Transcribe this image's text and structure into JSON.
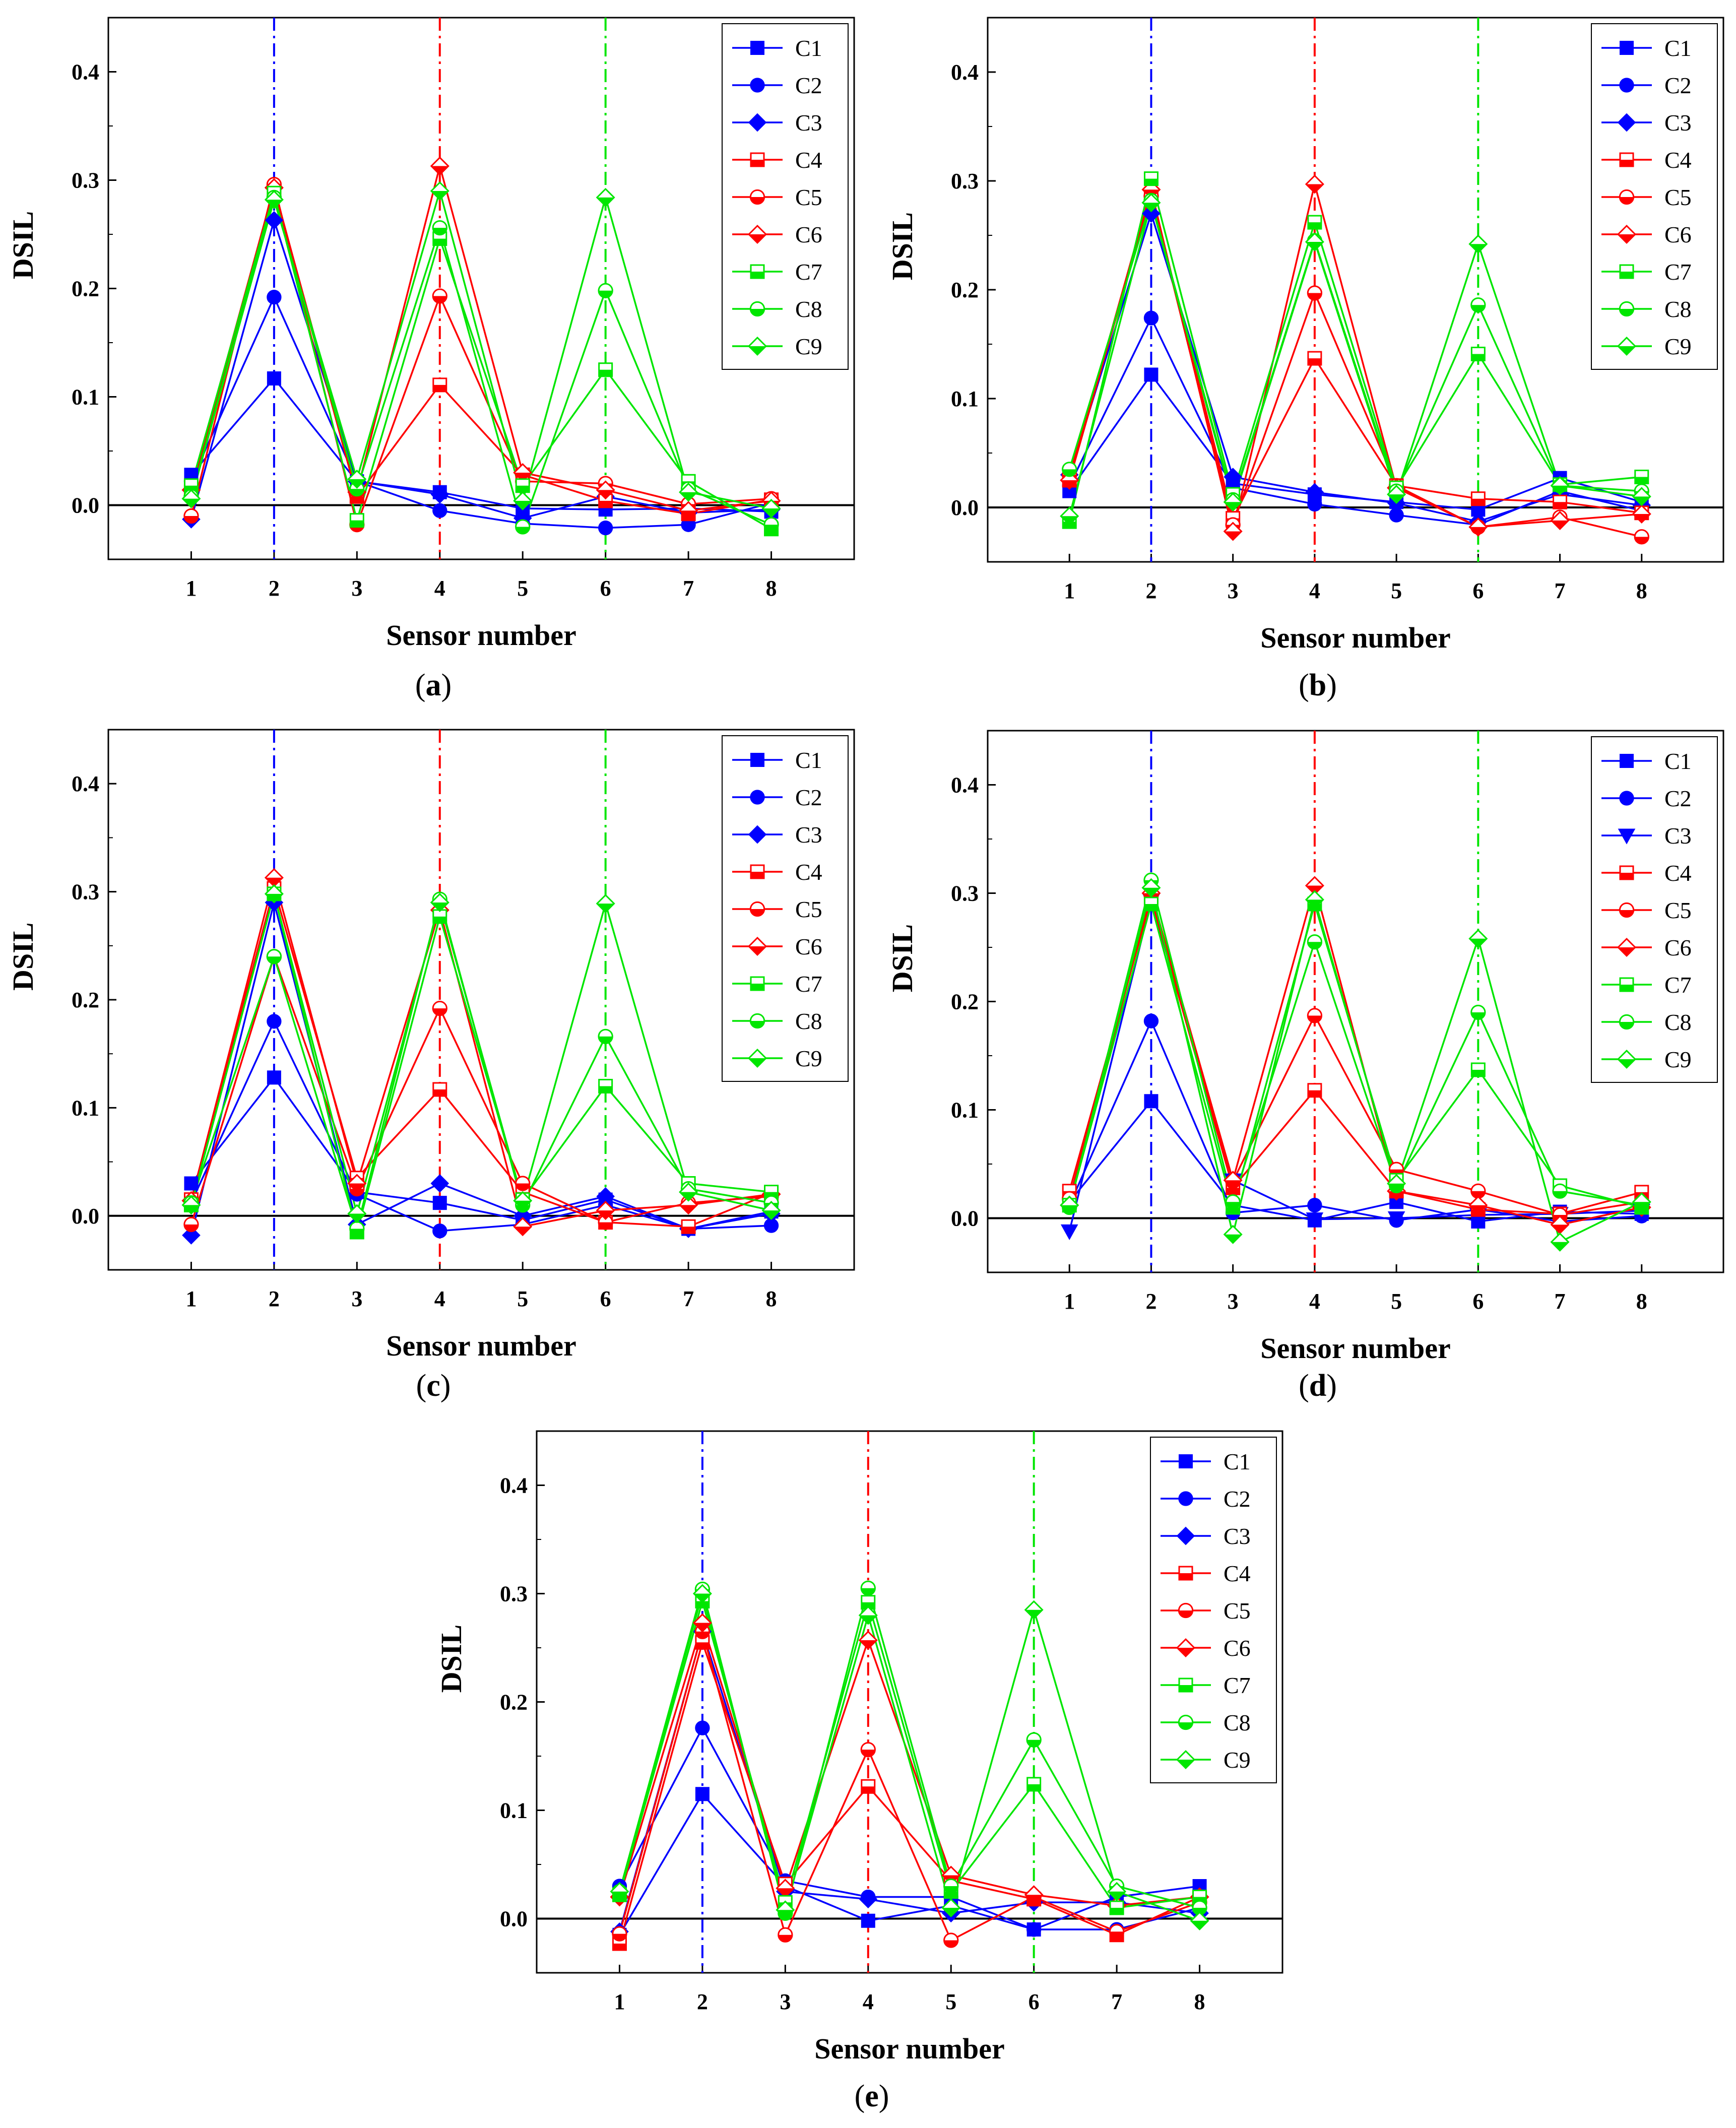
{
  "chart_data": [
    {
      "type": "line",
      "panel_label": "a",
      "xlabel": "Sensor number",
      "ylabel": "DSIL",
      "x": [
        1,
        2,
        3,
        4,
        5,
        6,
        7,
        8
      ],
      "xlim": [
        0,
        9
      ],
      "ylim": [
        -0.05,
        0.45
      ],
      "yticks": [
        0.0,
        0.1,
        0.2,
        0.3,
        0.4
      ],
      "yticklabels": [
        "0.0",
        "0.1",
        "0.2",
        "0.3",
        "0.4"
      ],
      "zero_line": true,
      "legend": "top-right",
      "vlines": [
        {
          "x": 2,
          "color": "#0000ff"
        },
        {
          "x": 4,
          "color": "#ff0000"
        },
        {
          "x": 6,
          "color": "#00e600"
        }
      ],
      "series": [
        {
          "name": "C1",
          "color": "#0000ff",
          "marker": "square",
          "fill": "filled",
          "values": [
            0.028,
            0.117,
            0.022,
            0.012,
            -0.003,
            -0.004,
            -0.003,
            -0.006
          ]
        },
        {
          "name": "C2",
          "color": "#0000ff",
          "marker": "circle",
          "fill": "filled",
          "values": [
            0.022,
            0.192,
            0.022,
            -0.005,
            -0.017,
            -0.021,
            -0.018,
            0.002
          ]
        },
        {
          "name": "C3",
          "color": "#0000ff",
          "marker": "diamond",
          "fill": "filled",
          "values": [
            -0.013,
            0.263,
            0.022,
            0.01,
            -0.012,
            0.008,
            -0.007,
            -0.004
          ]
        },
        {
          "name": "C4",
          "color": "#ff0000",
          "marker": "square",
          "fill": "half",
          "values": [
            0.012,
            0.29,
            0.008,
            0.111,
            0.028,
            0.004,
            -0.008,
            0.005
          ]
        },
        {
          "name": "C5",
          "color": "#ff0000",
          "marker": "circle",
          "fill": "half",
          "values": [
            -0.01,
            0.296,
            -0.018,
            0.193,
            0.022,
            0.02,
            0.001,
            0.006
          ]
        },
        {
          "name": "C6",
          "color": "#ff0000",
          "marker": "diamond",
          "fill": "half",
          "values": [
            0.014,
            0.293,
            0.012,
            0.313,
            0.03,
            0.014,
            -0.005,
            0.004
          ]
        },
        {
          "name": "C7",
          "color": "#00e600",
          "marker": "square",
          "fill": "half",
          "values": [
            0.018,
            0.288,
            -0.014,
            0.246,
            0.018,
            0.125,
            0.022,
            -0.022
          ]
        },
        {
          "name": "C8",
          "color": "#00e600",
          "marker": "circle",
          "fill": "half",
          "values": [
            0.008,
            0.284,
            0.015,
            0.256,
            -0.02,
            0.198,
            0.015,
            -0.018
          ]
        },
        {
          "name": "C9",
          "color": "#00e600",
          "marker": "diamond",
          "fill": "half",
          "values": [
            0.006,
            0.282,
            0.024,
            0.29,
            0.004,
            0.284,
            0.012,
            -0.003
          ]
        }
      ]
    },
    {
      "type": "line",
      "panel_label": "b",
      "xlabel": "Sensor number",
      "ylabel": "DSIL",
      "x": [
        1,
        2,
        3,
        4,
        5,
        6,
        7,
        8
      ],
      "xlim": [
        0,
        9
      ],
      "ylim": [
        -0.05,
        0.45
      ],
      "yticks": [
        0.0,
        0.1,
        0.2,
        0.3,
        0.4
      ],
      "yticklabels": [
        "0.0",
        "0.1",
        "0.2",
        "0.3",
        "0.4"
      ],
      "zero_line": true,
      "legend": "top-right",
      "vlines": [
        {
          "x": 2,
          "color": "#0000ff"
        },
        {
          "x": 4,
          "color": "#ff0000"
        },
        {
          "x": 6,
          "color": "#00e600"
        }
      ],
      "series": [
        {
          "name": "C1",
          "color": "#0000ff",
          "marker": "square",
          "fill": "filled",
          "values": [
            0.015,
            0.122,
            0.022,
            0.012,
            0.005,
            -0.002,
            0.027,
            0.005
          ]
        },
        {
          "name": "C2",
          "color": "#0000ff",
          "marker": "circle",
          "fill": "filled",
          "values": [
            0.02,
            0.174,
            0.018,
            0.003,
            -0.007,
            -0.016,
            0.015,
            -0.003
          ]
        },
        {
          "name": "C3",
          "color": "#0000ff",
          "marker": "diamond",
          "fill": "filled",
          "values": [
            0.03,
            0.27,
            0.028,
            0.014,
            0.004,
            -0.013,
            0.012,
            0.002
          ]
        },
        {
          "name": "C4",
          "color": "#ff0000",
          "marker": "square",
          "fill": "half",
          "values": [
            0.025,
            0.287,
            -0.01,
            0.137,
            0.02,
            0.008,
            0.005,
            -0.005
          ]
        },
        {
          "name": "C5",
          "color": "#ff0000",
          "marker": "circle",
          "fill": "half",
          "values": [
            0.03,
            0.286,
            -0.016,
            0.197,
            0.02,
            -0.018,
            -0.009,
            -0.027
          ]
        },
        {
          "name": "C6",
          "color": "#ff0000",
          "marker": "diamond",
          "fill": "half",
          "values": [
            0.025,
            0.292,
            -0.022,
            0.297,
            0.018,
            -0.018,
            -0.012,
            -0.006
          ]
        },
        {
          "name": "C7",
          "color": "#00e600",
          "marker": "square",
          "fill": "half",
          "values": [
            -0.013,
            0.302,
            0.012,
            0.262,
            0.018,
            0.141,
            0.021,
            0.028
          ]
        },
        {
          "name": "C8",
          "color": "#00e600",
          "marker": "circle",
          "fill": "half",
          "values": [
            0.035,
            0.282,
            0.007,
            0.245,
            0.015,
            0.186,
            0.02,
            0.015
          ]
        },
        {
          "name": "C9",
          "color": "#00e600",
          "marker": "diamond",
          "fill": "half",
          "values": [
            -0.008,
            0.28,
            0.005,
            0.244,
            0.012,
            0.242,
            0.02,
            0.01
          ]
        }
      ]
    },
    {
      "type": "line",
      "panel_label": "c",
      "xlabel": "Sensor number",
      "ylabel": "DSIL",
      "x": [
        1,
        2,
        3,
        4,
        5,
        6,
        7,
        8
      ],
      "xlim": [
        0,
        9
      ],
      "ylim": [
        -0.05,
        0.45
      ],
      "yticks": [
        0.0,
        0.1,
        0.2,
        0.3,
        0.4
      ],
      "yticklabels": [
        "0.0",
        "0.1",
        "0.2",
        "0.3",
        "0.4"
      ],
      "zero_line": true,
      "legend": "top-right",
      "vlines": [
        {
          "x": 2,
          "color": "#0000ff"
        },
        {
          "x": 4,
          "color": "#ff0000"
        },
        {
          "x": 6,
          "color": "#00e600"
        }
      ],
      "series": [
        {
          "name": "C1",
          "color": "#0000ff",
          "marker": "square",
          "fill": "filled",
          "values": [
            0.03,
            0.128,
            0.022,
            0.012,
            -0.004,
            0.015,
            -0.012,
            0.004
          ]
        },
        {
          "name": "C2",
          "color": "#0000ff",
          "marker": "circle",
          "fill": "filled",
          "values": [
            0.012,
            0.18,
            0.02,
            -0.014,
            -0.008,
            0.01,
            -0.012,
            -0.009
          ]
        },
        {
          "name": "C3",
          "color": "#0000ff",
          "marker": "diamond",
          "fill": "filled",
          "values": [
            -0.018,
            0.29,
            -0.008,
            0.03,
            0.0,
            0.018,
            -0.012,
            0.002
          ]
        },
        {
          "name": "C4",
          "color": "#ff0000",
          "marker": "square",
          "fill": "half",
          "values": [
            0.015,
            0.303,
            0.035,
            0.117,
            0.022,
            -0.006,
            -0.01,
            0.021
          ]
        },
        {
          "name": "C5",
          "color": "#ff0000",
          "marker": "circle",
          "fill": "half",
          "values": [
            -0.008,
            0.24,
            0.025,
            0.192,
            0.03,
            -0.006,
            0.012,
            0.018
          ]
        },
        {
          "name": "C6",
          "color": "#ff0000",
          "marker": "diamond",
          "fill": "half",
          "values": [
            0.014,
            0.313,
            0.03,
            0.283,
            -0.01,
            0.005,
            0.01,
            0.02
          ]
        },
        {
          "name": "C7",
          "color": "#00e600",
          "marker": "square",
          "fill": "half",
          "values": [
            0.01,
            0.298,
            -0.015,
            0.277,
            0.015,
            0.12,
            0.03,
            0.022
          ]
        },
        {
          "name": "C8",
          "color": "#00e600",
          "marker": "circle",
          "fill": "half",
          "values": [
            0.012,
            0.24,
            -0.012,
            0.293,
            0.01,
            0.166,
            0.025,
            0.012
          ]
        },
        {
          "name": "C9",
          "color": "#00e600",
          "marker": "diamond",
          "fill": "half",
          "values": [
            0.01,
            0.298,
            0.002,
            0.29,
            0.014,
            0.289,
            0.022,
            0.005
          ]
        }
      ]
    },
    {
      "type": "line",
      "panel_label": "d",
      "xlabel": "Sensor number",
      "ylabel": "DSIL",
      "x": [
        1,
        2,
        3,
        4,
        5,
        6,
        7,
        8
      ],
      "xlim": [
        0,
        9
      ],
      "ylim": [
        -0.05,
        0.45
      ],
      "yticks": [
        0.0,
        0.1,
        0.2,
        0.3,
        0.4
      ],
      "yticklabels": [
        "0.0",
        "0.1",
        "0.2",
        "0.3",
        "0.4"
      ],
      "zero_line": true,
      "legend": "top-right",
      "vlines": [
        {
          "x": 2,
          "color": "#0000ff"
        },
        {
          "x": 4,
          "color": "#ff0000"
        },
        {
          "x": 6,
          "color": "#00e600"
        }
      ],
      "series": [
        {
          "name": "C1",
          "color": "#0000ff",
          "marker": "square",
          "fill": "filled",
          "values": [
            0.015,
            0.108,
            0.012,
            -0.002,
            0.015,
            -0.003,
            0.006,
            0.004
          ]
        },
        {
          "name": "C2",
          "color": "#0000ff",
          "marker": "circle",
          "fill": "filled",
          "values": [
            0.012,
            0.182,
            0.005,
            0.012,
            -0.002,
            0.008,
            -0.003,
            0.002
          ]
        },
        {
          "name": "C3",
          "color": "#0000ff",
          "marker": "triangle-down",
          "fill": "filled",
          "values": [
            -0.012,
            0.293,
            0.035,
            -0.001,
            0.0,
            0.003,
            0.004,
            0.007
          ]
        },
        {
          "name": "C4",
          "color": "#ff0000",
          "marker": "square",
          "fill": "half",
          "values": [
            0.025,
            0.295,
            0.028,
            0.118,
            0.025,
            0.008,
            0.004,
            0.024
          ]
        },
        {
          "name": "C5",
          "color": "#ff0000",
          "marker": "circle",
          "fill": "half",
          "values": [
            0.018,
            0.298,
            0.034,
            0.187,
            0.045,
            0.025,
            0.003,
            0.015
          ]
        },
        {
          "name": "C6",
          "color": "#ff0000",
          "marker": "diamond",
          "fill": "half",
          "values": [
            0.012,
            0.3,
            0.035,
            0.307,
            0.025,
            0.012,
            -0.006,
            0.01
          ]
        },
        {
          "name": "C7",
          "color": "#00e600",
          "marker": "square",
          "fill": "half",
          "values": [
            0.012,
            0.29,
            0.01,
            0.29,
            0.035,
            0.137,
            0.03,
            0.01
          ]
        },
        {
          "name": "C8",
          "color": "#00e600",
          "marker": "circle",
          "fill": "half",
          "values": [
            0.01,
            0.312,
            0.015,
            0.255,
            0.03,
            0.19,
            0.025,
            0.012
          ]
        },
        {
          "name": "C9",
          "color": "#00e600",
          "marker": "diamond",
          "fill": "half",
          "values": [
            0.012,
            0.305,
            -0.015,
            0.294,
            0.032,
            0.258,
            -0.022,
            0.015
          ]
        }
      ]
    },
    {
      "type": "line",
      "panel_label": "e",
      "xlabel": "Sensor number",
      "ylabel": "DSIL",
      "x": [
        1,
        2,
        3,
        4,
        5,
        6,
        7,
        8
      ],
      "xlim": [
        0,
        9
      ],
      "ylim": [
        -0.05,
        0.45
      ],
      "yticks": [
        0.0,
        0.1,
        0.2,
        0.3,
        0.4
      ],
      "yticklabels": [
        "0.0",
        "0.1",
        "0.2",
        "0.3",
        "0.4"
      ],
      "zero_line": true,
      "legend": "top-right",
      "vlines": [
        {
          "x": 2,
          "color": "#0000ff"
        },
        {
          "x": 4,
          "color": "#ff0000"
        },
        {
          "x": 6,
          "color": "#00e600"
        }
      ],
      "series": [
        {
          "name": "C1",
          "color": "#0000ff",
          "marker": "square",
          "fill": "filled",
          "values": [
            -0.015,
            0.115,
            0.03,
            -0.002,
            0.012,
            -0.01,
            0.02,
            0.03
          ]
        },
        {
          "name": "C2",
          "color": "#0000ff",
          "marker": "circle",
          "fill": "filled",
          "values": [
            0.03,
            0.176,
            0.035,
            0.02,
            0.02,
            -0.01,
            -0.01,
            0.01
          ]
        },
        {
          "name": "C3",
          "color": "#0000ff",
          "marker": "diamond",
          "fill": "filled",
          "values": [
            -0.012,
            0.265,
            0.025,
            0.018,
            0.005,
            0.015,
            0.015,
            0.005
          ]
        },
        {
          "name": "C4",
          "color": "#ff0000",
          "marker": "square",
          "fill": "half",
          "values": [
            -0.023,
            0.255,
            0.032,
            0.122,
            0.035,
            0.018,
            -0.015,
            0.02
          ]
        },
        {
          "name": "C5",
          "color": "#ff0000",
          "marker": "circle",
          "fill": "half",
          "values": [
            -0.014,
            0.265,
            -0.015,
            0.156,
            -0.02,
            0.02,
            -0.012,
            0.015
          ]
        },
        {
          "name": "C6",
          "color": "#ff0000",
          "marker": "diamond",
          "fill": "half",
          "values": [
            0.02,
            0.273,
            0.028,
            0.257,
            0.04,
            0.022,
            0.012,
            0.02
          ]
        },
        {
          "name": "C7",
          "color": "#00e600",
          "marker": "square",
          "fill": "half",
          "values": [
            0.022,
            0.293,
            0.015,
            0.292,
            0.025,
            0.124,
            0.01,
            0.02
          ]
        },
        {
          "name": "C8",
          "color": "#00e600",
          "marker": "circle",
          "fill": "half",
          "values": [
            0.025,
            0.304,
            0.005,
            0.305,
            0.03,
            0.165,
            0.03,
            0.01
          ]
        },
        {
          "name": "C9",
          "color": "#00e600",
          "marker": "diamond",
          "fill": "half",
          "values": [
            0.025,
            0.3,
            0.008,
            0.28,
            0.01,
            0.285,
            0.025,
            -0.002
          ]
        }
      ]
    }
  ]
}
